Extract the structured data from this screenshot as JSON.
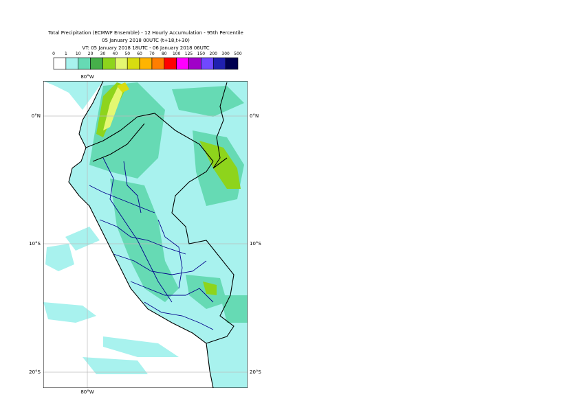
{
  "header": {
    "lines": [
      "Total Precipitation (ECMWF Ensemble) - 12 Hourly Accumulation - 95th Percentile",
      "05 January 2018 00UTC (t+18,t+30)",
      "VT: 05 January 2018 18UTC - 06 January 2018 06UTC"
    ]
  },
  "legend": {
    "levels": [
      0,
      1,
      10,
      20,
      30,
      40,
      50,
      60,
      70,
      80,
      100,
      125,
      150,
      200,
      300,
      500
    ],
    "colors": [
      "#ffffff",
      "#a8f2ee",
      "#66dab4",
      "#46b04a",
      "#8ed41c",
      "#e4f872",
      "#d8dc10",
      "#ffb400",
      "#ff7e00",
      "#ff0000",
      "#ff00ff",
      "#a000c8",
      "#7048ff",
      "#2020b0",
      "#000050"
    ]
  },
  "graticule": {
    "top": "80°W",
    "bottom": "80°W",
    "left": [
      "0°N",
      "10°S",
      "20°S"
    ],
    "right": [
      "0°N",
      "10°S",
      "20°S"
    ]
  }
}
